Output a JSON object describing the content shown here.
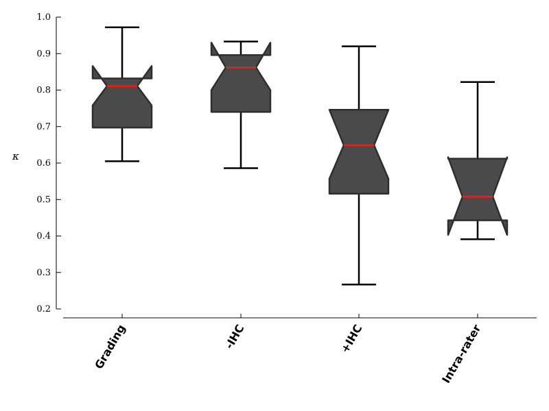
{
  "chart_data": {
    "type": "box",
    "notched": true,
    "ylabel": "κ",
    "ylim": [
      0.2,
      1.0
    ],
    "yticks": [
      "0.2",
      "0.3",
      "0.4",
      "0.5",
      "0.6",
      "0.7",
      "0.8",
      "0.9",
      "1.0"
    ],
    "categories": [
      "Grading",
      "-IHC",
      "+IHC",
      "Intra-rater"
    ],
    "boxes": [
      {
        "name": "Grading",
        "whisker_low": 0.605,
        "q1": 0.697,
        "median": 0.811,
        "q3": 0.832,
        "whisker_high": 0.972,
        "notch_low": 0.758,
        "notch_high": 0.866
      },
      {
        "name": "-IHC",
        "whisker_low": 0.586,
        "q1": 0.74,
        "median": 0.862,
        "q3": 0.896,
        "whisker_high": 0.933,
        "notch_low": 0.8,
        "notch_high": 0.93
      },
      {
        "name": "+IHC",
        "whisker_low": 0.267,
        "q1": 0.516,
        "median": 0.649,
        "q3": 0.746,
        "whisker_high": 0.92,
        "notch_low": 0.557,
        "notch_high": 0.746
      },
      {
        "name": "Intra-rater",
        "whisker_low": 0.391,
        "q1": 0.443,
        "median": 0.508,
        "q3": 0.612,
        "whisker_high": 0.822,
        "notch_low": 0.403,
        "notch_high": 0.616
      }
    ],
    "colors": {
      "box_fill": "#4a4a4a",
      "box_edge": "#2e2e2e",
      "median": "#d9231b",
      "whisker": "#000000",
      "axis": "#000000"
    },
    "grid": false
  }
}
